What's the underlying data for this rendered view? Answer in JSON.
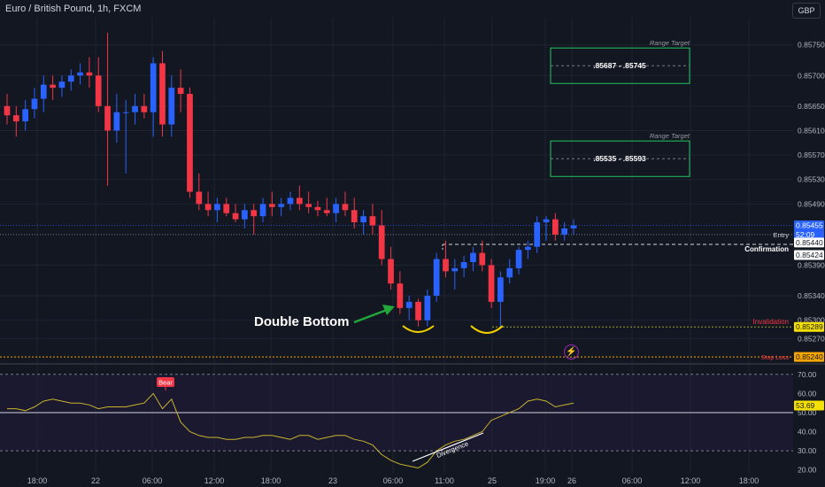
{
  "header": {
    "title": "Euro / British Pound, 1h, FXCM",
    "currency": "GBP"
  },
  "annotations": {
    "double_bottom": "Double Bottom",
    "range_target_1_label": "Range Target",
    "range_target_1_text": ".85687 - .85745",
    "range_target_2_label": "Range Target",
    "range_target_2_text": ".85535 - .85593",
    "entry_label": "Entry",
    "confirmation_label": "Confirmation",
    "invalidation_label": "Invalidation",
    "stop_loss_label": "Stop Loss",
    "divergence_label": "Divergence",
    "bear_label": "Bear",
    "current_price": "0.85455",
    "countdown": "52:09",
    "entry_price": "0.85440",
    "confirmation_price": "0.85424",
    "invalidation_price": "0.85289",
    "stop_loss_price": "0.85240",
    "rsi_value": "53.69"
  },
  "colors": {
    "background": "#131722",
    "up": "#2962ff",
    "down": "#f23645",
    "grid": "#1f2230",
    "rsi_line": "#c9b32e",
    "range_box": "#22c55e",
    "double_bottom_arrow": "#22a83a",
    "annotation_curve": "#f5d000"
  },
  "chart_data": [
    {
      "type": "candlestick",
      "title": "Euro / British Pound, 1h, FXCM",
      "ylim": [
        0.8523,
        0.8578
      ],
      "y_ticks": [
        "0.85750",
        "0.85700",
        "0.85650",
        "0.85610",
        "0.85570",
        "0.85530",
        "0.85490",
        "0.85455",
        "0.85440",
        "0.85424",
        "0.85390",
        "0.85340",
        "0.85300",
        "0.85289",
        "0.85270",
        "0.85240"
      ],
      "x_ticks": [
        "18:00",
        "22",
        "06:00",
        "12:00",
        "18:00",
        "23",
        "06:00",
        "11:00",
        "25",
        "19:00",
        "26",
        "06:00",
        "12:00",
        "18:00"
      ],
      "series": [
        {
          "name": "EUR/GBP",
          "ohlc": [
            [
              0.8565,
              0.8567,
              0.8562,
              0.85635
            ],
            [
              0.85635,
              0.8565,
              0.856,
              0.85625
            ],
            [
              0.85625,
              0.8566,
              0.8561,
              0.85645
            ],
            [
              0.85645,
              0.8568,
              0.8563,
              0.85662
            ],
            [
              0.85662,
              0.857,
              0.8564,
              0.85685
            ],
            [
              0.85685,
              0.857,
              0.8566,
              0.8568
            ],
            [
              0.8568,
              0.857,
              0.85665,
              0.8569
            ],
            [
              0.8569,
              0.8571,
              0.85675,
              0.857
            ],
            [
              0.857,
              0.8572,
              0.85685,
              0.85705
            ],
            [
              0.85705,
              0.8573,
              0.8568,
              0.857
            ],
            [
              0.857,
              0.8573,
              0.8564,
              0.8565
            ],
            [
              0.8565,
              0.8577,
              0.8552,
              0.8561
            ],
            [
              0.8561,
              0.8567,
              0.8559,
              0.8564
            ],
            [
              0.8564,
              0.8566,
              0.8554,
              0.8564
            ],
            [
              0.8564,
              0.8567,
              0.8562,
              0.8565
            ],
            [
              0.8565,
              0.8567,
              0.8563,
              0.8564
            ],
            [
              0.8564,
              0.8573,
              0.856,
              0.8572
            ],
            [
              0.8572,
              0.8574,
              0.856,
              0.8562
            ],
            [
              0.8562,
              0.857,
              0.856,
              0.8568
            ],
            [
              0.8568,
              0.8571,
              0.8564,
              0.8567
            ],
            [
              0.8567,
              0.8568,
              0.855,
              0.8551
            ],
            [
              0.8551,
              0.8554,
              0.8548,
              0.8549
            ],
            [
              0.8549,
              0.8551,
              0.8547,
              0.8548
            ],
            [
              0.8548,
              0.855,
              0.8546,
              0.8549
            ],
            [
              0.8549,
              0.855,
              0.8547,
              0.85475
            ],
            [
              0.85475,
              0.8549,
              0.8546,
              0.85465
            ],
            [
              0.85465,
              0.8549,
              0.8545,
              0.8548
            ],
            [
              0.8548,
              0.8549,
              0.8544,
              0.8547
            ],
            [
              0.8547,
              0.855,
              0.8546,
              0.8549
            ],
            [
              0.8549,
              0.8551,
              0.8547,
              0.85485
            ],
            [
              0.85485,
              0.855,
              0.8547,
              0.8549
            ],
            [
              0.8549,
              0.8551,
              0.8548,
              0.855
            ],
            [
              0.855,
              0.8552,
              0.8548,
              0.8549
            ],
            [
              0.8549,
              0.8551,
              0.85475,
              0.85485
            ],
            [
              0.85485,
              0.85495,
              0.8547,
              0.8548
            ],
            [
              0.8548,
              0.855,
              0.8547,
              0.85475
            ],
            [
              0.85475,
              0.855,
              0.8546,
              0.8549
            ],
            [
              0.8549,
              0.8551,
              0.8547,
              0.8548
            ],
            [
              0.8548,
              0.855,
              0.8545,
              0.8546
            ],
            [
              0.8546,
              0.8548,
              0.8544,
              0.8547
            ],
            [
              0.8547,
              0.8549,
              0.8544,
              0.85455
            ],
            [
              0.85455,
              0.8548,
              0.8539,
              0.854
            ],
            [
              0.854,
              0.8542,
              0.8535,
              0.8536
            ],
            [
              0.8536,
              0.8538,
              0.8531,
              0.8532
            ],
            [
              0.8532,
              0.8534,
              0.853,
              0.8533
            ],
            [
              0.8533,
              0.85335,
              0.8529,
              0.853
            ],
            [
              0.853,
              0.8535,
              0.8529,
              0.8534
            ],
            [
              0.8534,
              0.8541,
              0.8533,
              0.854
            ],
            [
              0.854,
              0.8543,
              0.8537,
              0.8538
            ],
            [
              0.8538,
              0.854,
              0.8535,
              0.85385
            ],
            [
              0.85385,
              0.85405,
              0.8537,
              0.85395
            ],
            [
              0.85395,
              0.8542,
              0.8538,
              0.8541
            ],
            [
              0.8541,
              0.8543,
              0.8538,
              0.8539
            ],
            [
              0.8539,
              0.854,
              0.8532,
              0.8533
            ],
            [
              0.8533,
              0.8538,
              0.8529,
              0.8537
            ],
            [
              0.8537,
              0.854,
              0.8536,
              0.85385
            ],
            [
              0.85385,
              0.8542,
              0.85375,
              0.85415
            ],
            [
              0.85415,
              0.8543,
              0.854,
              0.8542
            ],
            [
              0.8542,
              0.8547,
              0.8541,
              0.8546
            ],
            [
              0.8546,
              0.8547,
              0.8543,
              0.85465
            ],
            [
              0.85465,
              0.85475,
              0.8543,
              0.8544
            ],
            [
              0.8544,
              0.8546,
              0.8543,
              0.8545
            ],
            [
              0.8545,
              0.85465,
              0.8544,
              0.85455
            ]
          ]
        }
      ],
      "range_targets": [
        {
          "low": 0.85687,
          "high": 0.85745
        },
        {
          "low": 0.85535,
          "high": 0.85593
        }
      ],
      "levels": {
        "entry": 0.8544,
        "confirmation": 0.85424,
        "invalidation": 0.85289,
        "stop_loss": 0.8524
      }
    },
    {
      "type": "line",
      "ylim": [
        18,
        75
      ],
      "y_ticks": [
        "70.00",
        "60.00",
        "50.00",
        "40.00",
        "30.00",
        "20.00"
      ],
      "reference_lines": [
        70,
        50,
        30
      ],
      "series": [
        {
          "values": [
            52,
            52,
            51,
            53,
            56,
            57,
            56,
            55,
            55,
            54,
            52,
            53,
            53,
            53,
            54,
            55,
            60,
            52,
            57,
            45,
            40,
            38,
            37,
            37,
            36,
            36,
            37,
            37,
            38,
            38,
            37,
            36,
            38,
            38,
            36,
            37,
            38,
            38,
            36,
            35,
            33,
            28,
            25,
            23,
            22,
            21,
            24,
            30,
            33,
            35,
            36,
            38,
            40,
            46,
            48,
            50,
            52,
            56,
            57,
            56,
            53,
            54,
            55
          ]
        }
      ]
    }
  ]
}
